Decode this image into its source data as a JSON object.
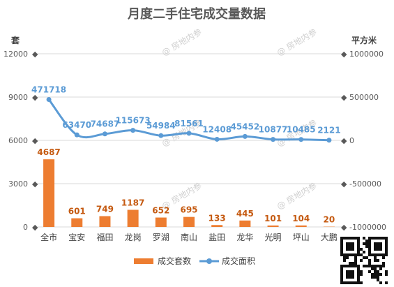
{
  "chart_data": {
    "type": "bar",
    "title": "月度二手住宅成交量数据",
    "categories": [
      "全市",
      "宝安",
      "福田",
      "龙岗",
      "罗湖",
      "南山",
      "盐田",
      "龙华",
      "光明",
      "坪山",
      "大鹏"
    ],
    "left_axis": {
      "unit": "套",
      "ylim": [
        0,
        12000
      ],
      "ticks": [
        0,
        3000,
        6000,
        9000,
        12000
      ]
    },
    "right_axis": {
      "unit": "平方米",
      "ylim": [
        -1000000,
        1000000
      ],
      "ticks": [
        -1000000,
        -500000,
        0,
        500000,
        1000000
      ]
    },
    "series": [
      {
        "name": "成交套数",
        "type": "bar",
        "axis": "left",
        "color": "#ed7d31",
        "values": [
          4687,
          601,
          749,
          1187,
          652,
          695,
          133,
          445,
          101,
          104,
          20
        ]
      },
      {
        "name": "成交面积",
        "type": "line",
        "axis": "right",
        "color": "#5b9bd5",
        "values": [
          471718,
          63470,
          74687,
          115673,
          54984,
          81561,
          12408,
          45452,
          10877,
          10485,
          2121
        ]
      }
    ],
    "grid": true,
    "legend": "bottom",
    "watermark": "房地内参"
  }
}
